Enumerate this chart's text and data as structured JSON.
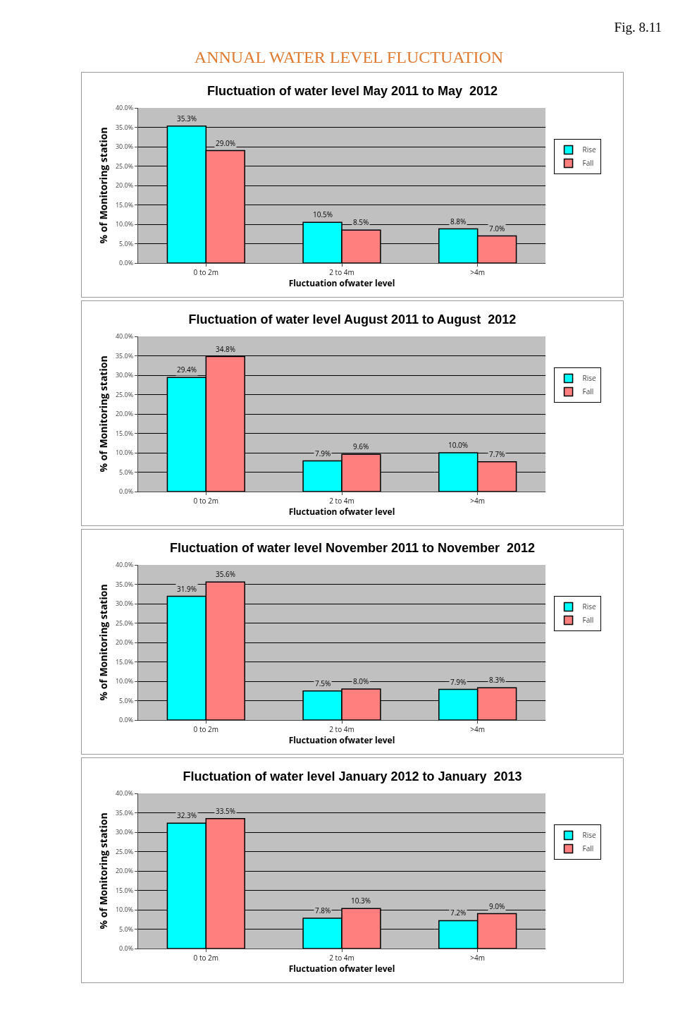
{
  "chart_data": [
    {
      "type": "bar",
      "title": "Fluctuation of water level May 2011 to May  2012",
      "xlabel": "Fluctuation ofwater level",
      "ylabel": "% of Monitoring station",
      "annotations": [
        "Fig. 8.11",
        "ANNUAL WATER LEVEL FLUCTUATION"
      ],
      "categories": [
        "0 to 2m",
        "2 to 4m",
        ">4m"
      ],
      "series": [
        {
          "name": "Rise",
          "color": "#00ffff",
          "values": [
            35.3,
            10.5,
            8.8
          ],
          "value_labels": [
            "35.3%",
            "10.5%",
            "8.8%"
          ]
        },
        {
          "name": "Fall",
          "color": "#ff7f7f",
          "values": [
            29.0,
            8.5,
            7.0
          ],
          "value_labels": [
            "29.0%",
            "8.5%",
            "7.0%"
          ]
        }
      ],
      "ylim": [
        0,
        40
      ],
      "yticks": [
        {
          "value": 0,
          "label": "0.0%"
        },
        {
          "value": 5,
          "label": "5.0%"
        },
        {
          "value": 10,
          "label": "10.0%"
        },
        {
          "value": 15,
          "label": "15.0%"
        },
        {
          "value": 20,
          "label": "20.0%"
        },
        {
          "value": 25,
          "label": "25.0%"
        },
        {
          "value": 30,
          "label": "30.0%"
        },
        {
          "value": 35,
          "label": "35.0%"
        },
        {
          "value": 40,
          "label": "40.0%"
        }
      ],
      "grid": "y",
      "legend": "right"
    },
    {
      "type": "bar",
      "title": "Fluctuation of water level August 2011 to August  2012",
      "xlabel": "Fluctuation ofwater level",
      "ylabel": "% of Monitoring station",
      "categories": [
        "0 to 2m",
        "2 to 4m",
        ">4m"
      ],
      "series": [
        {
          "name": "Rise",
          "color": "#00ffff",
          "values": [
            29.4,
            7.9,
            10.0
          ],
          "value_labels": [
            "29.4%",
            "7.9%",
            "10.0%"
          ]
        },
        {
          "name": "Fall",
          "color": "#ff7f7f",
          "values": [
            34.8,
            9.6,
            7.7
          ],
          "value_labels": [
            "34.8%",
            "9.6%",
            "7.7%"
          ]
        }
      ],
      "ylim": [
        0,
        40
      ],
      "yticks": [
        {
          "value": 0,
          "label": "0.0%"
        },
        {
          "value": 5,
          "label": "5.0%"
        },
        {
          "value": 10,
          "label": "10.0%"
        },
        {
          "value": 15,
          "label": "15.0%"
        },
        {
          "value": 20,
          "label": "20.0%"
        },
        {
          "value": 25,
          "label": "25.0%"
        },
        {
          "value": 30,
          "label": "30.0%"
        },
        {
          "value": 35,
          "label": "35.0%"
        },
        {
          "value": 40,
          "label": "40.0%"
        }
      ],
      "grid": "y",
      "legend": "right"
    },
    {
      "type": "bar",
      "title": "Fluctuation of water level November 2011 to November  2012",
      "xlabel": "Fluctuation ofwater level",
      "ylabel": "% of Monitoring station",
      "categories": [
        "0 to 2m",
        "2 to 4m",
        ">4m"
      ],
      "series": [
        {
          "name": "Rise",
          "color": "#00ffff",
          "values": [
            31.9,
            7.5,
            7.9
          ],
          "value_labels": [
            "31.9%",
            "7.5%",
            "7.9%"
          ]
        },
        {
          "name": "Fall",
          "color": "#ff7f7f",
          "values": [
            35.6,
            8.0,
            8.3
          ],
          "value_labels": [
            "35.6%",
            "8.0%",
            "8.3%"
          ]
        }
      ],
      "ylim": [
        0,
        40
      ],
      "yticks": [
        {
          "value": 0,
          "label": "0.0%"
        },
        {
          "value": 5,
          "label": "5.0%"
        },
        {
          "value": 10,
          "label": "10.0%"
        },
        {
          "value": 15,
          "label": "15.0%"
        },
        {
          "value": 20,
          "label": "20.0%"
        },
        {
          "value": 25,
          "label": "25.0%"
        },
        {
          "value": 30,
          "label": "30.0%"
        },
        {
          "value": 35,
          "label": "35.0%"
        },
        {
          "value": 40,
          "label": "40.0%"
        }
      ],
      "grid": "y",
      "legend": "right"
    },
    {
      "type": "bar",
      "title": "Fluctuation of water level January 2012 to January  2013",
      "xlabel": "Fluctuation ofwater level",
      "ylabel": "% of Monitoring station",
      "categories": [
        "0 to 2m",
        "2 to 4m",
        ">4m"
      ],
      "series": [
        {
          "name": "Rise",
          "color": "#00ffff",
          "values": [
            32.3,
            7.8,
            7.2
          ],
          "value_labels": [
            "32.3%",
            "7.8%",
            "7.2%"
          ]
        },
        {
          "name": "Fall",
          "color": "#ff7f7f",
          "values": [
            33.5,
            10.3,
            9.0
          ],
          "value_labels": [
            "33.5%",
            "10.3%",
            "9.0%"
          ]
        }
      ],
      "ylim": [
        0,
        40
      ],
      "yticks": [
        {
          "value": 0,
          "label": "0.0%"
        },
        {
          "value": 5,
          "label": "5.0%"
        },
        {
          "value": 10,
          "label": "10.0%"
        },
        {
          "value": 15,
          "label": "15.0%"
        },
        {
          "value": 20,
          "label": "20.0%"
        },
        {
          "value": 25,
          "label": "25.0%"
        },
        {
          "value": 30,
          "label": "30.0%"
        },
        {
          "value": 35,
          "label": "35.0%"
        },
        {
          "value": 40,
          "label": "40.0%"
        }
      ],
      "grid": "y",
      "legend": "right"
    }
  ]
}
